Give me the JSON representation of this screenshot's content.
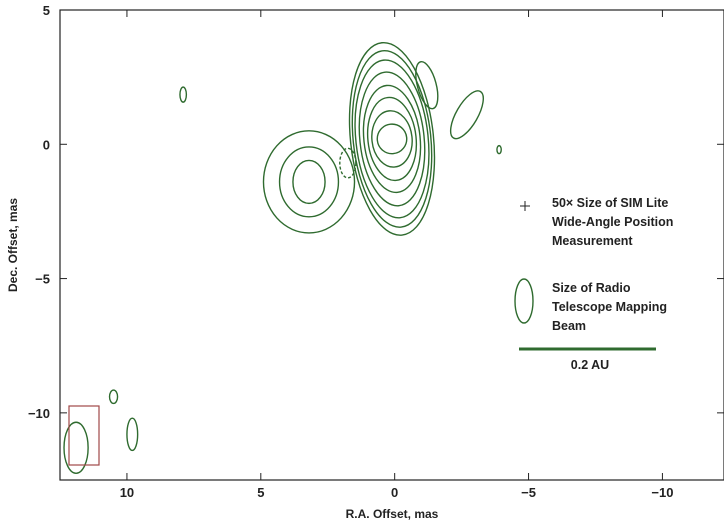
{
  "chart_data": {
    "type": "contour",
    "xlabel": "R.A. Offset, mas",
    "ylabel": "Dec. Offset, mas",
    "xlim": [
      12.5,
      -12.3
    ],
    "ylim": [
      -12.5,
      5
    ],
    "x_inverted": true,
    "xticks": [
      10,
      5,
      0,
      -5,
      -10
    ],
    "yticks": [
      5,
      0,
      -5,
      -10
    ],
    "xtick_labels": [
      "10",
      "5",
      "0",
      "−5",
      "−10"
    ],
    "ytick_labels": [
      "5",
      "0",
      "−5",
      "−10"
    ],
    "grid": false,
    "contour_color": "#2f6b2f",
    "beam_box_color": "#a04848",
    "components": [
      {
        "name": "core",
        "x": 0.1,
        "y": 0.2,
        "levels": [
          {
            "rx": 0.55,
            "ry": 0.55
          },
          {
            "rx": 0.75,
            "ry": 1.05
          },
          {
            "rx": 0.9,
            "ry": 1.55
          },
          {
            "rx": 1.05,
            "ry": 2.0
          },
          {
            "rx": 1.2,
            "ry": 2.5
          },
          {
            "rx": 1.35,
            "ry": 2.95
          },
          {
            "rx": 1.45,
            "ry": 3.3
          },
          {
            "rx": 1.55,
            "ry": 3.6
          }
        ]
      },
      {
        "name": "west-component",
        "x": 3.2,
        "y": -1.4,
        "levels": [
          {
            "rx": 0.6,
            "ry": 0.8
          },
          {
            "rx": 1.1,
            "ry": 1.3
          },
          {
            "rx": 1.7,
            "ry": 1.9
          }
        ]
      },
      {
        "name": "negative-contour",
        "x": 1.75,
        "y": -0.7,
        "rx": 0.3,
        "ry": 0.55,
        "dashed": true
      },
      {
        "name": "north-blob",
        "x": -1.2,
        "y": 2.2,
        "rx": 0.35,
        "ry": 0.9
      },
      {
        "name": "east-blob",
        "x": -2.7,
        "y": 1.1,
        "rx": 0.4,
        "ry": 1.0
      },
      {
        "name": "east-dot",
        "x": -3.9,
        "y": -0.2,
        "rx": 0.08,
        "ry": 0.15
      },
      {
        "name": "northwest-blob",
        "x": 7.9,
        "y": 1.85,
        "rx": 0.12,
        "ry": 0.28
      },
      {
        "name": "southwest-blob-1",
        "x": 10.5,
        "y": -9.4,
        "rx": 0.15,
        "ry": 0.25
      },
      {
        "name": "southwest-blob-2",
        "x": 9.8,
        "y": -10.8,
        "rx": 0.2,
        "ry": 0.6
      },
      {
        "name": "beam",
        "x": 11.9,
        "y": -11.3,
        "rx": 0.45,
        "ry": 0.95
      }
    ],
    "legend": {
      "position_marker_label": "50× Size of SIM Lite Wide-Angle Position Measurement",
      "beam_label": "Size of Radio Telescope Mapping Beam",
      "scale_bar_label": "0.2 AU"
    }
  },
  "legend_text": {
    "sim_lines": [
      "50× Size of SIM Lite",
      "Wide-Angle Position",
      "Measurement"
    ],
    "beam_lines": [
      "Size of Radio",
      "Telescope Mapping",
      "Beam"
    ],
    "scale": "0.2 AU"
  }
}
